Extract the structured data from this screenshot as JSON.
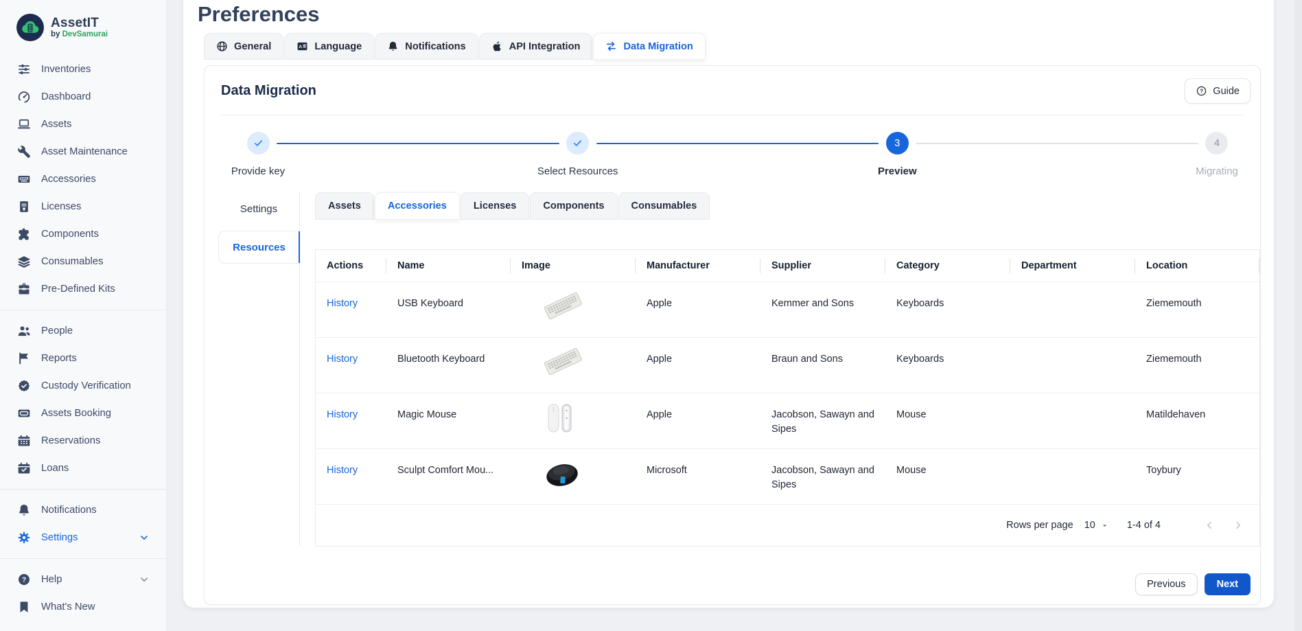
{
  "app": {
    "name": "AssetIT",
    "byline_prefix": "by",
    "byline_brand": "DevSamurai"
  },
  "page": {
    "title": "Preferences"
  },
  "colors": {
    "accent": "#1766dc",
    "button_blue": "#1257c9",
    "brand_green": "#2aa45c",
    "step_completed_bg": "#dcebfd",
    "step_check_blue": "#2f86f6",
    "sidebar_text": "#3c4a66"
  },
  "sidebar": {
    "groups": [
      {
        "items": [
          {
            "icon": "sliders-icon",
            "label": "Inventories"
          },
          {
            "icon": "gauge-icon",
            "label": "Dashboard"
          },
          {
            "icon": "laptop-icon",
            "label": "Assets"
          },
          {
            "icon": "wrench-icon",
            "label": "Asset Maintenance"
          },
          {
            "icon": "keyboard-icon",
            "label": "Accessories"
          },
          {
            "icon": "license-icon",
            "label": "Licenses"
          },
          {
            "icon": "puzzle-icon",
            "label": "Components"
          },
          {
            "icon": "layers-icon",
            "label": "Consumables"
          },
          {
            "icon": "toolbox-icon",
            "label": "Pre-Defined Kits"
          }
        ]
      },
      {
        "items": [
          {
            "icon": "people-icon",
            "label": "People"
          },
          {
            "icon": "flag-icon",
            "label": "Reports"
          },
          {
            "icon": "badge-check-icon",
            "label": "Custody Verification"
          },
          {
            "icon": "card-icon",
            "label": "Assets Booking"
          },
          {
            "icon": "calendar-icon",
            "label": "Reservations"
          },
          {
            "icon": "calendar-check-icon",
            "label": "Loans"
          }
        ]
      },
      {
        "items": [
          {
            "icon": "bell-icon",
            "label": "Notifications"
          },
          {
            "icon": "gear-icon",
            "label": "Settings",
            "active": true,
            "chevron": true
          }
        ]
      },
      {
        "items": [
          {
            "icon": "help-circle-icon",
            "label": "Help",
            "chevron": true
          },
          {
            "icon": "bookmark-icon",
            "label": "What's New"
          }
        ]
      }
    ]
  },
  "top_tabs": [
    {
      "icon": "globe-icon",
      "label": "General"
    },
    {
      "icon": "translate-icon",
      "label": "Language"
    },
    {
      "icon": "bell-icon",
      "label": "Notifications"
    },
    {
      "icon": "apple-icon",
      "label": "API Integration"
    },
    {
      "icon": "transfer-icon",
      "label": "Data Migration",
      "active": true
    }
  ],
  "card": {
    "title": "Data Migration",
    "guide_label": "Guide"
  },
  "stepper": {
    "steps": [
      {
        "label": "Provide key",
        "state": "completed"
      },
      {
        "label": "Select Resources",
        "state": "completed"
      },
      {
        "label": "Preview",
        "state": "active",
        "number": "3"
      },
      {
        "label": "Migrating",
        "state": "upcoming",
        "number": "4"
      }
    ]
  },
  "settings_tabs": [
    {
      "label": "Settings"
    },
    {
      "label": "Resources",
      "active": true
    }
  ],
  "resource_tabs": [
    {
      "label": "Assets"
    },
    {
      "label": "Accessories",
      "active": true
    },
    {
      "label": "Licenses"
    },
    {
      "label": "Components"
    },
    {
      "label": "Consumables"
    }
  ],
  "table": {
    "columns": [
      "Actions",
      "Name",
      "Image",
      "Manufacturer",
      "Supplier",
      "Category",
      "Department",
      "Location"
    ],
    "action_label": "History",
    "rows": [
      {
        "name": "USB Keyboard",
        "image": "keyboard",
        "manufacturer": "Apple",
        "supplier": "Kemmer and Sons",
        "category": "Keyboards",
        "department": "",
        "location": "Ziememouth"
      },
      {
        "name": "Bluetooth Keyboard",
        "image": "keyboard",
        "manufacturer": "Apple",
        "supplier": "Braun and Sons",
        "category": "Keyboards",
        "department": "",
        "location": "Ziememouth"
      },
      {
        "name": "Magic Mouse",
        "image": "magic-mouse",
        "manufacturer": "Apple",
        "supplier": "Jacobson, Sawayn and Sipes",
        "category": "Mouse",
        "department": "",
        "location": "Matildehaven"
      },
      {
        "name": "Sculpt Comfort Mou...",
        "image": "sculpt-mouse",
        "manufacturer": "Microsoft",
        "supplier": "Jacobson, Sawayn and Sipes",
        "category": "Mouse",
        "department": "",
        "location": "Toybury"
      }
    ]
  },
  "pagination": {
    "rows_per_page_label": "Rows per page",
    "rows_per_page_value": "10",
    "range_label": "1-4 of 4"
  },
  "footer": {
    "previous_label": "Previous",
    "next_label": "Next"
  }
}
